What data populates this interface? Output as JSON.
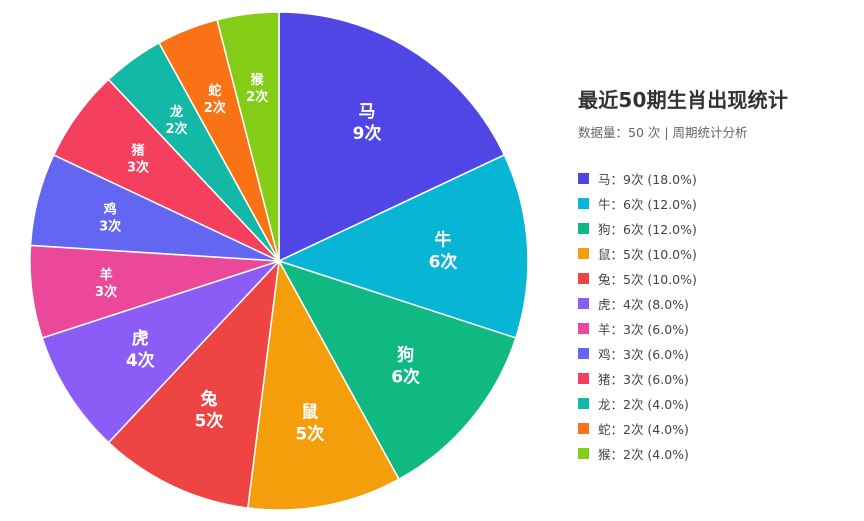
{
  "chart_data": {
    "type": "pie",
    "title": "最近50期生肖出现统计",
    "subtitle": "数据量：50 次 | 周期统计分析",
    "unit": "次",
    "slices": [
      {
        "name": "马",
        "value": 9,
        "percent": "18.0%",
        "color": "#4f46e5",
        "legend": "马：9次 (18.0%)"
      },
      {
        "name": "牛",
        "value": 6,
        "percent": "12.0%",
        "color": "#06b6d4",
        "legend": "牛：6次 (12.0%)"
      },
      {
        "name": "狗",
        "value": 6,
        "percent": "12.0%",
        "color": "#10b981",
        "legend": "狗：6次 (12.0%)"
      },
      {
        "name": "鼠",
        "value": 5,
        "percent": "10.0%",
        "color": "#f59e0b",
        "legend": "鼠：5次 (10.0%)"
      },
      {
        "name": "兔",
        "value": 5,
        "percent": "10.0%",
        "color": "#ef4444",
        "legend": "兔：5次 (10.0%)"
      },
      {
        "name": "虎",
        "value": 4,
        "percent": "8.0%",
        "color": "#8b5cf6",
        "legend": "虎：4次 (8.0%)"
      },
      {
        "name": "羊",
        "value": 3,
        "percent": "6.0%",
        "color": "#ec4899",
        "legend": "羊：3次 (6.0%)"
      },
      {
        "name": "鸡",
        "value": 3,
        "percent": "6.0%",
        "color": "#6366f1",
        "legend": "鸡：3次 (6.0%)"
      },
      {
        "name": "猪",
        "value": 3,
        "percent": "6.0%",
        "color": "#f43f5e",
        "legend": "猪：3次 (6.0%)"
      },
      {
        "name": "龙",
        "value": 2,
        "percent": "4.0%",
        "color": "#14b8a6",
        "legend": "龙：2次 (4.0%)"
      },
      {
        "name": "蛇",
        "value": 2,
        "percent": "4.0%",
        "color": "#f97316",
        "legend": "蛇：2次 (4.0%)"
      },
      {
        "name": "猴",
        "value": 2,
        "percent": "4.0%",
        "color": "#84cc16",
        "legend": "猴：2次 (4.0%)"
      }
    ],
    "legend_position": "right"
  }
}
